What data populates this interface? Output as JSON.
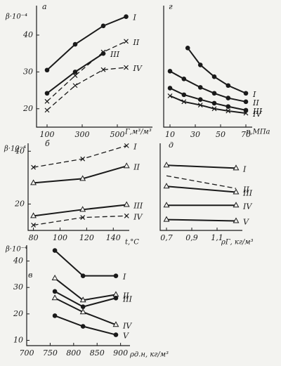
{
  "chart_data": [
    {
      "type": "line",
      "title": "а",
      "y_label": "β·10⁻⁴",
      "x_label": "Г,м³/м³",
      "xlim": [
        40,
        700
      ],
      "ylim": [
        15,
        48
      ],
      "xticks": [
        100,
        300,
        500
      ],
      "yticks": [
        20,
        30,
        40
      ],
      "x": [
        100,
        260,
        420,
        550
      ],
      "series": [
        {
          "name": "I",
          "marker": "circle",
          "dashed": false,
          "values": [
            30.5,
            37.5,
            42.5,
            45
          ]
        },
        {
          "name": "II",
          "marker": "x",
          "dashed": true,
          "values": [
            22,
            29,
            35.4,
            38.3
          ]
        },
        {
          "name": "III",
          "marker": "circle",
          "dashed": false,
          "values": [
            24.2,
            30,
            35,
            null
          ]
        },
        {
          "name": "IV",
          "marker": "x",
          "dashed": true,
          "values": [
            19.6,
            26.3,
            30.6,
            31.2
          ]
        }
      ]
    },
    {
      "type": "line",
      "title": "г",
      "x_label": "p,МПа",
      "xlim": [
        5,
        75
      ],
      "ylim": [
        15,
        48
      ],
      "xticks": [
        10,
        30,
        50,
        70
      ],
      "series": [
        {
          "name": "I",
          "marker": "circle",
          "dashed": false,
          "x": [
            24,
            34,
            45,
            56,
            70
          ],
          "values": [
            36.5,
            31.9,
            28.7,
            26.3,
            24.2
          ]
        },
        {
          "name": "II",
          "marker": "circle",
          "dashed": false,
          "x": [
            10,
            21,
            34,
            45,
            56,
            70
          ],
          "values": [
            30.2,
            28.1,
            25.8,
            24.2,
            22.9,
            21.9
          ]
        },
        {
          "name": "III",
          "marker": "circle",
          "dashed": false,
          "x": [
            10,
            21,
            34,
            45,
            56,
            70
          ],
          "values": [
            25.6,
            23.8,
            22.5,
            21.5,
            20.6,
            19.6
          ]
        },
        {
          "name": "IV",
          "marker": "x",
          "dashed": false,
          "x": [
            10,
            21,
            34,
            45,
            56,
            70
          ],
          "values": [
            23.5,
            21.9,
            21,
            20,
            19.4,
            18.8
          ]
        }
      ]
    },
    {
      "type": "line",
      "title": "б",
      "y_label": "β·10⁻⁴",
      "x_label": "t,°C",
      "xlim": [
        76,
        152
      ],
      "ylim": [
        10,
        43
      ],
      "xticks": [
        80,
        100,
        120,
        140
      ],
      "yticks": [
        20,
        40
      ],
      "x": [
        80,
        117,
        150
      ],
      "series": [
        {
          "name": "I",
          "marker": "x",
          "dashed": true,
          "values": [
            33.9,
            37.1,
            42.1
          ]
        },
        {
          "name": "II",
          "marker": "triangle",
          "dashed": false,
          "values": [
            28,
            29.6,
            34.4
          ]
        },
        {
          "name": "III",
          "marker": "triangle",
          "dashed": false,
          "values": [
            15.5,
            17.9,
            19.7
          ]
        },
        {
          "name": "IV",
          "marker": "x",
          "dashed": true,
          "values": [
            12,
            14.9,
            15.5
          ]
        }
      ]
    },
    {
      "type": "line",
      "title": "д",
      "x_label": "ρГ, кг/м³",
      "xlim": [
        0.65,
        1.3
      ],
      "ylim": [
        10,
        43
      ],
      "xticks": [
        {
          "value": 0.7,
          "label": "0,7"
        },
        {
          "value": 0.9,
          "label": "0,9"
        },
        {
          "value": 1.1,
          "label": "1,1"
        }
      ],
      "x": [
        0.7,
        1.25
      ],
      "series": [
        {
          "name": "I",
          "marker": "triangle",
          "dashed": false,
          "values": [
            34.7,
            33.6
          ]
        },
        {
          "name": "II",
          "marker": "none",
          "dashed": true,
          "values": [
            30.7,
            25.9
          ]
        },
        {
          "name": "III",
          "marker": "triangle",
          "dashed": false,
          "values": [
            26.7,
            24.5
          ]
        },
        {
          "name": "IV",
          "marker": "triangle",
          "dashed": false,
          "values": [
            19.5,
            19.5
          ]
        },
        {
          "name": "V",
          "marker": "triangle",
          "dashed": false,
          "values": [
            14.1,
            13.6
          ]
        }
      ]
    },
    {
      "type": "line",
      "title": "в",
      "y_label": "β·10⁻⁴",
      "x_label": "ρд.н, кг/м³",
      "xlim": [
        700,
        920
      ],
      "ylim": [
        8,
        46
      ],
      "xticks": [
        700,
        750,
        800,
        850,
        900
      ],
      "yticks": [
        10,
        20,
        30,
        40
      ],
      "x": [
        760,
        820,
        890
      ],
      "series": [
        {
          "name": "I",
          "marker": "circle",
          "dashed": false,
          "values": [
            44,
            34.4,
            34.4
          ]
        },
        {
          "name": "II",
          "marker": "triangle",
          "dashed": false,
          "values": [
            33.5,
            25.2,
            27.3
          ]
        },
        {
          "name": "III",
          "marker": "circle",
          "dashed": false,
          "values": [
            28.5,
            22.7,
            26
          ]
        },
        {
          "name": "IV",
          "marker": "triangle",
          "dashed": false,
          "values": [
            26,
            20.7,
            15.9
          ]
        },
        {
          "name": "V",
          "marker": "circle",
          "dashed": false,
          "values": [
            19.3,
            15.3,
            12.1
          ]
        }
      ]
    }
  ]
}
